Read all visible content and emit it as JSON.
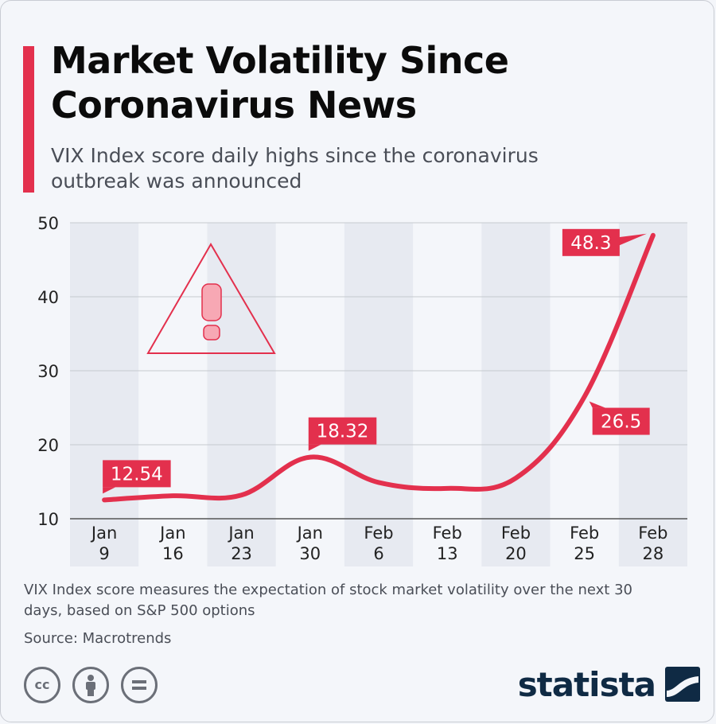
{
  "header": {
    "title": "Market Volatility Since Coronavirus News",
    "subtitle": "VIX Index score daily highs since the coronavirus outbreak was announced"
  },
  "footer": {
    "note": "VIX Index score measures the expectation of stock market volatility over the next 30 days, based on S&P 500 options",
    "source": "Source: Macrotrends",
    "brand": "statista"
  },
  "colors": {
    "accent": "#e3304d",
    "band": "#e7eaf1",
    "grid": "#c6c9cf",
    "brand": "#0f2a44"
  },
  "icons": [
    "warning-triangle-icon",
    "creative-commons-icon",
    "attribution-icon",
    "no-derivatives-icon",
    "statista-logo-icon"
  ],
  "chart_data": {
    "type": "line",
    "categories": [
      [
        "Jan",
        "9"
      ],
      [
        "Jan",
        "16"
      ],
      [
        "Jan",
        "23"
      ],
      [
        "Jan",
        "30"
      ],
      [
        "Feb",
        "6"
      ],
      [
        "Feb",
        "13"
      ],
      [
        "Feb",
        "20"
      ],
      [
        "Feb",
        "25"
      ],
      [
        "Feb",
        "28"
      ]
    ],
    "values": [
      12.54,
      13.1,
      13.2,
      18.32,
      14.9,
      14.1,
      15.5,
      26.5,
      48.3
    ],
    "data_labels": [
      {
        "index": 0,
        "text": "12.54"
      },
      {
        "index": 3,
        "text": "18.32"
      },
      {
        "index": 7,
        "text": "26.5"
      },
      {
        "index": 8,
        "text": "48.3"
      }
    ],
    "ylim": [
      10,
      50
    ],
    "yticks": [
      10,
      20,
      30,
      40,
      50
    ],
    "grid": true,
    "alternating_bands": true
  }
}
